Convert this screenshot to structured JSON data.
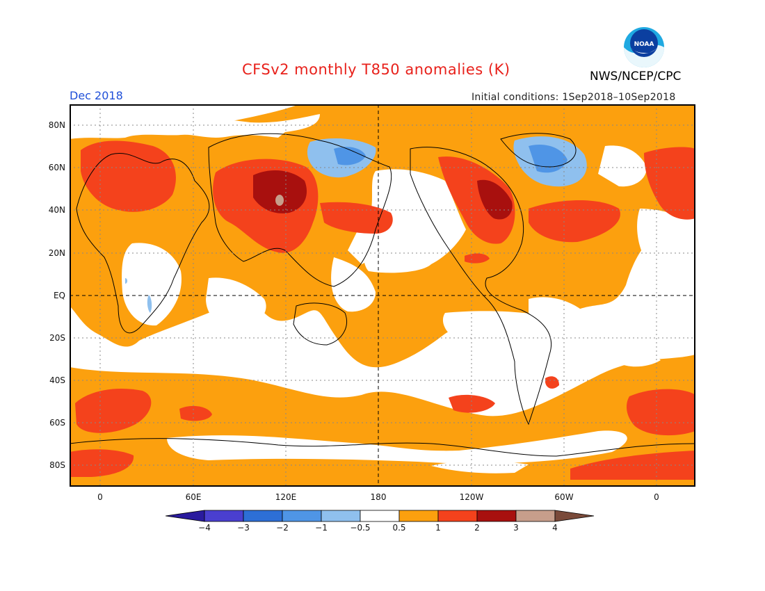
{
  "header": {
    "title": "CFSv2 monthly T850 anomalies (K)",
    "agency": "NWS/NCEP/CPC",
    "month": "Dec 2018",
    "initial_conditions": "Initial conditions: 1Sep2018–10Sep2018",
    "logo_text": "NOAA"
  },
  "axes": {
    "x_ticks": [
      "0",
      "60E",
      "120E",
      "180",
      "120W",
      "60W",
      "0"
    ],
    "y_ticks": [
      "80N",
      "60N",
      "40N",
      "20N",
      "EQ",
      "20S",
      "40S",
      "60S",
      "80S"
    ]
  },
  "colorbar": {
    "labels": [
      "−4",
      "−3",
      "−2",
      "−1",
      "−0.5",
      "0.5",
      "1",
      "2",
      "3",
      "4"
    ],
    "colors": [
      "#2a1b9e",
      "#4a3fcf",
      "#2d6fd6",
      "#4f95e6",
      "#8fc0ee",
      "#ffffff",
      "#fca00e",
      "#f4421c",
      "#a8100e",
      "#c79e8b",
      "#7a4a3a"
    ]
  },
  "colors": {
    "weak_warm": "#fca00e",
    "warm": "#f4421c",
    "strong_warm": "#a8100e",
    "very_strong_warm": "#c79e8b",
    "weak_cool": "#8fc0ee",
    "cool": "#4f95e6",
    "title": "#e8211b",
    "month": "#1f4fd8"
  }
}
